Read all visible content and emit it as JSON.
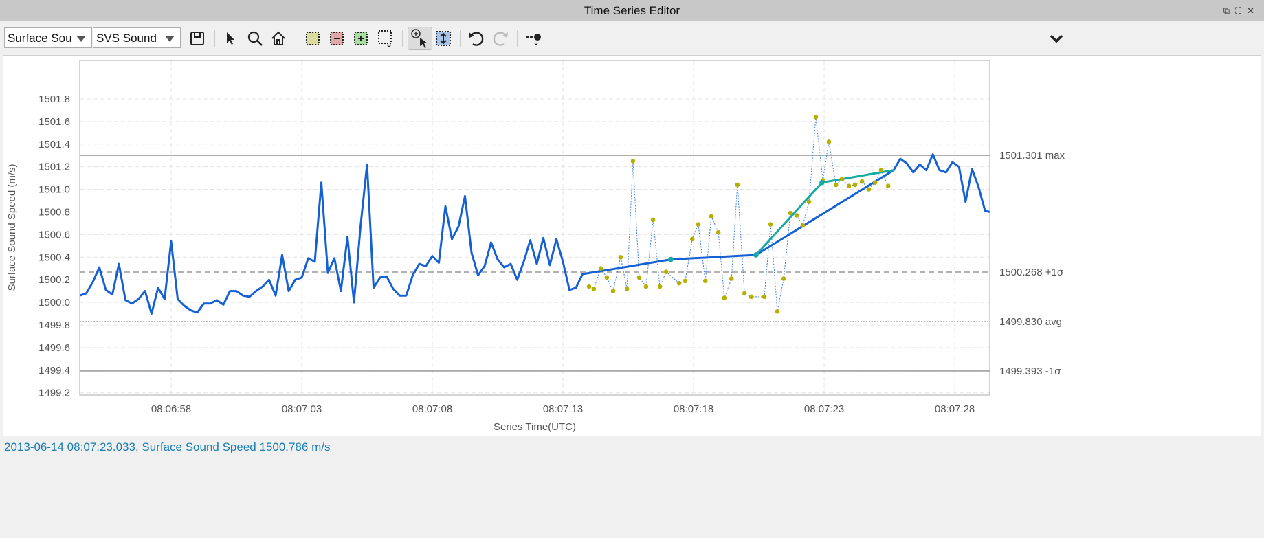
{
  "window": {
    "title": "Time Series Editor",
    "icons": [
      "restore-icon",
      "maximize-icon",
      "close-icon"
    ]
  },
  "toolbar": {
    "series_select": "Surface Sou",
    "sensor_select": "SVS Sound",
    "buttons": [
      {
        "name": "save",
        "icon": "floppy-disk-icon"
      },
      {
        "name": "select",
        "icon": "arrow-pointer-icon"
      },
      {
        "name": "zoom",
        "icon": "magnifier-icon"
      },
      {
        "name": "home",
        "icon": "home-icon"
      },
      {
        "name": "select-region",
        "icon": "yellow-dotted-box-icon"
      },
      {
        "name": "remove-region",
        "icon": "red-minus-box-icon"
      },
      {
        "name": "add-region",
        "icon": "green-plus-box-icon"
      },
      {
        "name": "region-menu",
        "icon": "dotted-box-dropdown-icon"
      },
      {
        "name": "zoom-pointer",
        "icon": "zoom-in-pointer-icon",
        "pressed": true
      },
      {
        "name": "vertical-fit",
        "icon": "vertical-arrows-box-icon"
      },
      {
        "name": "undo",
        "icon": "undo-icon"
      },
      {
        "name": "redo",
        "icon": "redo-icon",
        "disabled": true
      },
      {
        "name": "point-style",
        "icon": "point-style-dropdown-icon"
      },
      {
        "name": "more",
        "icon": "chevron-down-icon"
      }
    ]
  },
  "chart_data": {
    "type": "line",
    "xlabel": "Series Time(UTC)",
    "ylabel": "Surface Sound Speed (m/s)",
    "xlim": [
      "08:06:54.50",
      "08:07:29.34"
    ],
    "ylim": [
      1499.18,
      1502.14
    ],
    "xticks": [
      "08:06:58",
      "08:07:03",
      "08:07:08",
      "08:07:13",
      "08:07:18",
      "08:07:23",
      "08:07:28"
    ],
    "yticks": [
      "1499.2",
      "1499.4",
      "1499.6",
      "1499.8",
      "1500.0",
      "1500.2",
      "1500.4",
      "1500.6",
      "1500.8",
      "1501.0",
      "1501.2",
      "1501.4",
      "1501.6",
      "1501.8"
    ],
    "grid": true,
    "colors": {
      "main": "#1560d4",
      "edited": "#14aaa4",
      "raw_points": "#b5b000",
      "raw_line": "#3a7ee0",
      "reference": "#a0a0a0"
    },
    "reference_lines": [
      {
        "value": 1501.301,
        "label": "1501.301 max",
        "style": "solid"
      },
      {
        "value": 1500.268,
        "label": "1500.268 +1σ",
        "style": "dashed"
      },
      {
        "value": 1499.83,
        "label": "1499.830 avg",
        "style": "dotted"
      },
      {
        "value": 1499.393,
        "label": "1499.393 -1σ",
        "style": "solid"
      }
    ],
    "series": [
      {
        "role": "main",
        "x": [
          "08:06:54.50",
          "08:06:54.75",
          "08:06:55.00",
          "08:06:55.25",
          "08:06:55.50",
          "08:06:55.75",
          "08:06:56.00",
          "08:06:56.25",
          "08:06:56.50",
          "08:06:56.75",
          "08:06:57.00",
          "08:06:57.25",
          "08:06:57.50",
          "08:06:57.75",
          "08:06:58.00",
          "08:06:58.25",
          "08:06:58.50",
          "08:06:58.75",
          "08:06:59.00",
          "08:06:59.25",
          "08:06:59.50",
          "08:06:59.75",
          "08:07:00.00",
          "08:07:00.25",
          "08:07:00.50",
          "08:07:00.75",
          "08:07:01.00",
          "08:07:01.25",
          "08:07:01.50",
          "08:07:01.75",
          "08:07:02.00",
          "08:07:02.25",
          "08:07:02.50",
          "08:07:02.75",
          "08:07:03.00",
          "08:07:03.25",
          "08:07:03.50",
          "08:07:03.75",
          "08:07:04.00",
          "08:07:04.25",
          "08:07:04.50",
          "08:07:04.75",
          "08:07:05.00",
          "08:07:05.25",
          "08:07:05.50",
          "08:07:05.75",
          "08:07:06.00",
          "08:07:06.25",
          "08:07:06.50",
          "08:07:06.75",
          "08:07:07.00",
          "08:07:07.25",
          "08:07:07.50",
          "08:07:07.75",
          "08:07:08.00",
          "08:07:08.25",
          "08:07:08.50",
          "08:07:08.75",
          "08:07:09.00",
          "08:07:09.25",
          "08:07:09.50",
          "08:07:09.75",
          "08:07:10.00",
          "08:07:10.25",
          "08:07:10.50",
          "08:07:10.75",
          "08:07:11.00",
          "08:07:11.25",
          "08:07:11.50",
          "08:07:11.75",
          "08:07:12.00",
          "08:07:12.25",
          "08:07:12.50",
          "08:07:12.75",
          "08:07:13.00",
          "08:07:13.25",
          "08:07:13.50",
          "08:07:13.75",
          "08:07:17.13",
          "08:07:20.39",
          "08:07:25.66",
          "08:07:25.91",
          "08:07:26.16",
          "08:07:26.41",
          "08:07:26.66",
          "08:07:26.91",
          "08:07:27.16",
          "08:07:27.41",
          "08:07:27.66",
          "08:07:27.91",
          "08:07:28.16",
          "08:07:28.41",
          "08:07:28.66",
          "08:07:28.91",
          "08:07:29.16",
          "08:07:29.34"
        ],
        "y": [
          1500.06,
          1500.08,
          1500.18,
          1500.31,
          1500.11,
          1500.07,
          1500.34,
          1500.02,
          1499.99,
          1500.03,
          1500.1,
          1499.9,
          1500.13,
          1500.03,
          1500.54,
          1500.03,
          1499.97,
          1499.93,
          1499.91,
          1499.99,
          1499.99,
          1500.02,
          1499.98,
          1500.1,
          1500.1,
          1500.06,
          1500.05,
          1500.1,
          1500.14,
          1500.2,
          1500.06,
          1500.42,
          1500.1,
          1500.2,
          1500.22,
          1500.39,
          1500.36,
          1501.06,
          1500.26,
          1500.39,
          1500.1,
          1500.58,
          1500.0,
          1500.67,
          1501.22,
          1500.13,
          1500.22,
          1500.23,
          1500.12,
          1500.06,
          1500.06,
          1500.24,
          1500.34,
          1500.32,
          1500.41,
          1500.35,
          1500.85,
          1500.56,
          1500.67,
          1500.94,
          1500.44,
          1500.24,
          1500.32,
          1500.53,
          1500.38,
          1500.31,
          1500.34,
          1500.2,
          1500.36,
          1500.55,
          1500.34,
          1500.57,
          1500.33,
          1500.56,
          1500.36,
          1500.11,
          1500.13,
          1500.25,
          1500.38,
          1500.42,
          1501.17,
          1501.27,
          1501.23,
          1501.15,
          1501.22,
          1501.17,
          1501.31,
          1501.17,
          1501.15,
          1501.24,
          1501.2,
          1500.89,
          1501.18,
          1501.02,
          1500.81,
          1500.8
        ]
      },
      {
        "role": "edited",
        "x": [
          "08:07:20.39",
          "08:07:22.92",
          "08:07:25.66"
        ],
        "y": [
          1500.42,
          1501.06,
          1501.17
        ],
        "markers": [
          "08:07:17.13",
          "08:07:20.39",
          "08:07:22.92"
        ],
        "marker_values": [
          1500.38,
          1500.42,
          1501.06
        ]
      },
      {
        "role": "raw_points",
        "x": [
          "08:07:14.00",
          "08:07:14.18",
          "08:07:14.45",
          "08:07:14.68",
          "08:07:14.92",
          "08:07:15.21",
          "08:07:15.45",
          "08:07:15.68",
          "08:07:15.92",
          "08:07:16.18",
          "08:07:16.45",
          "08:07:16.71",
          "08:07:16.95",
          "08:07:17.45",
          "08:07:17.68",
          "08:07:17.95",
          "08:07:18.18",
          "08:07:18.45",
          "08:07:18.68",
          "08:07:18.95",
          "08:07:19.18",
          "08:07:19.45",
          "08:07:19.68",
          "08:07:19.95",
          "08:07:20.21",
          "08:07:20.71",
          "08:07:20.95",
          "08:07:21.21",
          "08:07:21.45",
          "08:07:21.71",
          "08:07:21.95",
          "08:07:22.18",
          "08:07:22.42",
          "08:07:22.68",
          "08:07:22.95",
          "08:07:23.18",
          "08:07:23.45",
          "08:07:23.68",
          "08:07:23.95",
          "08:07:24.18",
          "08:07:24.45",
          "08:07:24.71",
          "08:07:24.95",
          "08:07:25.18",
          "08:07:25.45"
        ],
        "y": [
          1500.14,
          1500.12,
          1500.3,
          1500.22,
          1500.1,
          1500.4,
          1500.12,
          1501.25,
          1500.22,
          1500.14,
          1500.73,
          1500.14,
          1500.27,
          1500.17,
          1500.19,
          1500.56,
          1500.69,
          1500.19,
          1500.76,
          1500.62,
          1500.04,
          1500.21,
          1501.04,
          1500.08,
          1500.05,
          1500.05,
          1500.69,
          1499.92,
          1500.21,
          1500.79,
          1500.77,
          1500.68,
          1500.89,
          1501.64,
          1501.08,
          1501.42,
          1501.04,
          1501.09,
          1501.03,
          1501.04,
          1501.07,
          1501.0,
          1501.06,
          1501.17,
          1501.03
        ]
      }
    ]
  },
  "status": {
    "text": "2013-06-14 08:07:23.033, Surface Sound Speed 1500.786 m/s"
  }
}
